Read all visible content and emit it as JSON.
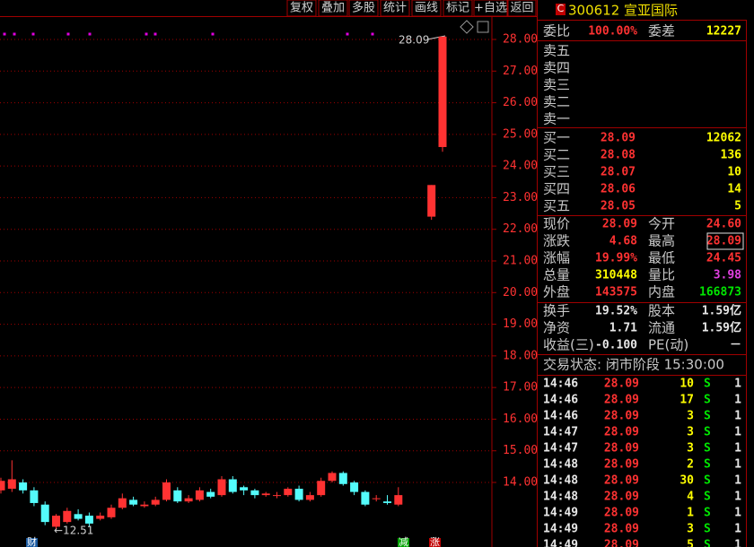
{
  "toolbar": [
    "复权",
    "叠加",
    "多股",
    "统计",
    "画线",
    "标记",
    "+自选",
    "返回"
  ],
  "chart_data": {
    "type": "candlestick",
    "open": [
      13.75,
      13.8,
      14.0,
      13.75,
      13.3,
      12.6,
      12.75,
      13.0,
      12.95,
      12.85,
      12.9,
      13.2,
      13.45,
      13.25,
      13.3,
      13.45,
      13.75,
      13.4,
      13.45,
      13.7,
      13.6,
      14.1,
      13.85,
      13.75,
      13.6,
      13.6,
      13.6,
      13.8,
      13.45,
      13.6,
      14.05,
      14.3,
      14.0,
      13.7,
      13.5,
      13.4,
      13.3,
      null,
      null,
      22.4,
      24.6
    ],
    "high": [
      14.15,
      14.7,
      14.1,
      13.85,
      13.4,
      13.0,
      13.2,
      13.15,
      13.05,
      13.05,
      13.3,
      13.65,
      13.55,
      13.4,
      13.55,
      14.1,
      13.85,
      13.6,
      13.85,
      13.8,
      14.2,
      14.2,
      13.9,
      13.8,
      13.7,
      13.7,
      13.85,
      13.9,
      13.7,
      14.15,
      14.35,
      14.35,
      14.05,
      13.75,
      13.6,
      13.6,
      13.85,
      null,
      null,
      23.4,
      28.09
    ],
    "low": [
      13.65,
      13.7,
      13.65,
      13.25,
      12.65,
      12.51,
      12.7,
      12.8,
      12.6,
      12.8,
      12.85,
      13.15,
      13.25,
      13.2,
      13.25,
      13.4,
      13.35,
      13.35,
      13.4,
      13.5,
      13.55,
      13.65,
      13.6,
      13.5,
      13.55,
      13.5,
      13.55,
      13.4,
      13.4,
      13.55,
      14.0,
      13.9,
      13.6,
      13.25,
      13.4,
      13.3,
      13.25,
      null,
      null,
      22.3,
      24.45
    ],
    "close": [
      14.05,
      14.1,
      13.75,
      13.35,
      12.75,
      12.95,
      13.1,
      12.85,
      12.7,
      12.95,
      13.2,
      13.5,
      13.3,
      13.3,
      13.45,
      14.0,
      13.4,
      13.5,
      13.75,
      13.55,
      14.1,
      13.7,
      13.75,
      13.6,
      13.65,
      13.6,
      13.8,
      13.45,
      13.6,
      14.05,
      14.3,
      13.95,
      13.7,
      13.3,
      13.5,
      13.35,
      13.6,
      null,
      null,
      23.4,
      28.09
    ],
    "up_color": "#ff3232",
    "down_color": "#54fcfc",
    "ylim": [
      12.3,
      28.68
    ],
    "yticks": [
      {
        "value": 14,
        "label": "14.00"
      },
      {
        "value": 15,
        "label": "15.00"
      },
      {
        "value": 16,
        "label": "16.00"
      },
      {
        "value": 17,
        "label": "17.00"
      },
      {
        "value": 18,
        "label": "18.00"
      },
      {
        "value": 19,
        "label": "19.00"
      },
      {
        "value": 20,
        "label": "20.00"
      },
      {
        "value": 21,
        "label": "21.00"
      },
      {
        "value": 22,
        "label": "22.00"
      },
      {
        "value": 23,
        "label": "23.00"
      },
      {
        "value": 24,
        "label": "24.00"
      },
      {
        "value": 25,
        "label": "25.00"
      },
      {
        "value": 26,
        "label": "26.00"
      },
      {
        "value": 27,
        "label": "27.00"
      },
      {
        "value": 28,
        "label": "28.00"
      }
    ],
    "grid": true,
    "annotations": [
      "28.09",
      "←12.51"
    ],
    "markers": [
      "财",
      "减",
      "涨"
    ]
  },
  "quote": {
    "badge": "C",
    "title": "300612 宣亚国际"
  },
  "order_ratio": [
    "委比",
    "100.00%",
    "委差",
    "12227"
  ],
  "asks": [
    "卖五",
    "卖四",
    "卖三",
    "卖二",
    "卖一"
  ],
  "bids": [
    [
      "买一",
      "28.09",
      "12062"
    ],
    [
      "买二",
      "28.08",
      "136"
    ],
    [
      "买三",
      "28.07",
      "10"
    ],
    [
      "买四",
      "28.06",
      "14"
    ],
    [
      "买五",
      "28.05",
      "5"
    ]
  ],
  "stats": [
    [
      "现价",
      "28.09",
      "今开",
      "24.60"
    ],
    [
      "涨跌",
      "4.68",
      "最高",
      "28.09"
    ],
    [
      "涨幅",
      "19.99%",
      "最低",
      "24.45"
    ],
    [
      "总量",
      "310448",
      "量比",
      "3.98"
    ],
    [
      "外盘",
      "143575",
      "内盘",
      "166873"
    ]
  ],
  "stats2": [
    [
      "换手",
      "19.52%",
      "股本",
      "1.59亿"
    ],
    [
      "净资",
      "1.71",
      "流通",
      "1.59亿"
    ],
    [
      "收益(三)",
      "-0.100",
      "PE(动)",
      "－"
    ]
  ],
  "status": "交易状态: 闭市阶段 15:30:00",
  "ticks": [
    [
      "14:46",
      "28.09",
      "10",
      "S",
      "1"
    ],
    [
      "14:46",
      "28.09",
      "17",
      "S",
      "1"
    ],
    [
      "14:46",
      "28.09",
      "3",
      "S",
      "1"
    ],
    [
      "14:47",
      "28.09",
      "3",
      "S",
      "1"
    ],
    [
      "14:47",
      "28.09",
      "3",
      "S",
      "1"
    ],
    [
      "14:48",
      "28.09",
      "2",
      "S",
      "1"
    ],
    [
      "14:48",
      "28.09",
      "30",
      "S",
      "1"
    ],
    [
      "14:48",
      "28.09",
      "4",
      "S",
      "1"
    ],
    [
      "14:49",
      "28.09",
      "1",
      "S",
      "1"
    ],
    [
      "14:49",
      "28.09",
      "3",
      "S",
      "1"
    ],
    [
      "14:49",
      "28.09",
      "5",
      "S",
      "1"
    ]
  ]
}
